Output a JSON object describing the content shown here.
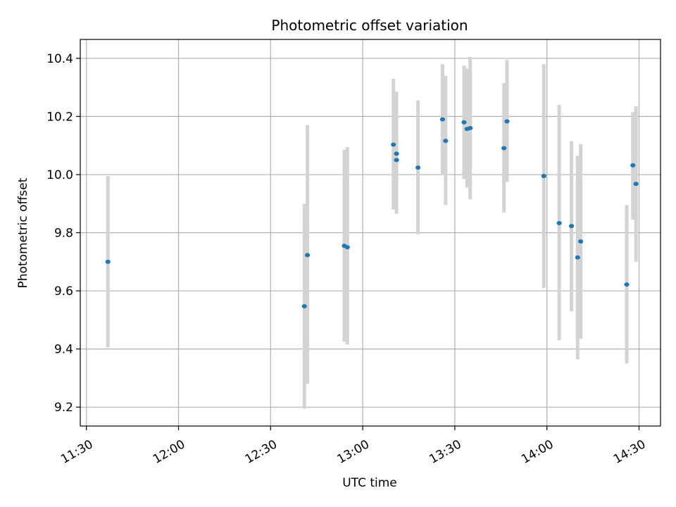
{
  "chart_data": {
    "type": "scatter",
    "title": "Photometric offset variation",
    "xlabel": "UTC time",
    "ylabel": "Photometric offset",
    "x_unit": "UTC time (HH:MM)",
    "xlim": [
      "11:28",
      "14:37"
    ],
    "ylim": [
      9.135,
      10.465
    ],
    "x_ticks": [
      "11:30",
      "12:00",
      "12:30",
      "13:00",
      "13:30",
      "14:00",
      "14:30"
    ],
    "y_ticks": [
      "9.2",
      "9.4",
      "9.6",
      "9.8",
      "10.0",
      "10.2",
      "10.4"
    ],
    "y_tick_values": [
      9.2,
      9.4,
      9.6,
      9.8,
      10.0,
      10.2,
      10.4
    ],
    "grid": true,
    "colors": {
      "point": "#1f77b4",
      "errorbar": "#d3d3d3",
      "grid": "#b0b0b0"
    },
    "errorbars": [
      {
        "time": "11:37",
        "low": 9.405,
        "high": 9.995
      },
      {
        "time": "12:41",
        "low": 9.195,
        "high": 9.9
      },
      {
        "time": "12:42",
        "low": 9.28,
        "high": 10.17
      },
      {
        "time": "12:54",
        "low": 9.425,
        "high": 10.085
      },
      {
        "time": "12:55",
        "low": 9.415,
        "high": 10.095
      },
      {
        "time": "13:10",
        "low": 9.88,
        "high": 10.33
      },
      {
        "time": "13:11",
        "low": 9.865,
        "high": 10.285
      },
      {
        "time": "13:18",
        "low": 9.795,
        "high": 10.255
      },
      {
        "time": "13:26",
        "low": 10.0,
        "high": 10.38
      },
      {
        "time": "13:27",
        "low": 9.895,
        "high": 10.34
      },
      {
        "time": "13:33",
        "low": 9.985,
        "high": 10.375
      },
      {
        "time": "13:34",
        "low": 9.955,
        "high": 10.365
      },
      {
        "time": "13:35",
        "low": 9.915,
        "high": 10.405
      },
      {
        "time": "13:46",
        "low": 9.87,
        "high": 10.315
      },
      {
        "time": "13:47",
        "low": 9.975,
        "high": 10.395
      },
      {
        "time": "13:59",
        "low": 9.61,
        "high": 10.38
      },
      {
        "time": "14:04",
        "low": 9.43,
        "high": 10.24
      },
      {
        "time": "14:08",
        "low": 9.53,
        "high": 10.115
      },
      {
        "time": "14:10",
        "low": 9.365,
        "high": 10.065
      },
      {
        "time": "14:11",
        "low": 9.435,
        "high": 10.105
      },
      {
        "time": "14:26",
        "low": 9.35,
        "high": 9.895
      },
      {
        "time": "14:28",
        "low": 9.845,
        "high": 10.215
      },
      {
        "time": "14:29",
        "low": 9.7,
        "high": 10.235
      }
    ],
    "points": [
      {
        "time": "11:37",
        "value": 9.7
      },
      {
        "time": "12:41",
        "value": 9.547
      },
      {
        "time": "12:42",
        "value": 9.723
      },
      {
        "time": "12:54",
        "value": 9.755
      },
      {
        "time": "12:55",
        "value": 9.75
      },
      {
        "time": "13:10",
        "value": 10.103
      },
      {
        "time": "13:11",
        "value": 10.05
      },
      {
        "time": "13:11",
        "value": 10.072
      },
      {
        "time": "13:18",
        "value": 10.024
      },
      {
        "time": "13:26",
        "value": 10.19
      },
      {
        "time": "13:27",
        "value": 10.116
      },
      {
        "time": "13:33",
        "value": 10.18
      },
      {
        "time": "13:34",
        "value": 10.157
      },
      {
        "time": "13:35",
        "value": 10.16
      },
      {
        "time": "13:46",
        "value": 10.091
      },
      {
        "time": "13:47",
        "value": 10.183
      },
      {
        "time": "13:59",
        "value": 9.995
      },
      {
        "time": "14:04",
        "value": 9.833
      },
      {
        "time": "14:08",
        "value": 9.823
      },
      {
        "time": "14:10",
        "value": 9.715
      },
      {
        "time": "14:11",
        "value": 9.77
      },
      {
        "time": "14:26",
        "value": 9.622
      },
      {
        "time": "14:28",
        "value": 10.032
      },
      {
        "time": "14:29",
        "value": 9.968
      }
    ]
  }
}
